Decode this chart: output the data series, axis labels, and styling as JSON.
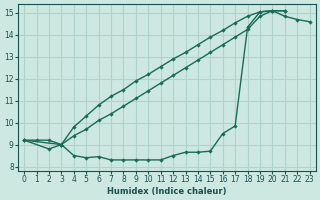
{
  "xlabel": "Humidex (Indice chaleur)",
  "xlim": [
    -0.5,
    23.5
  ],
  "ylim": [
    7.8,
    15.4
  ],
  "xticks": [
    0,
    1,
    2,
    3,
    4,
    5,
    6,
    7,
    8,
    9,
    10,
    11,
    12,
    13,
    14,
    15,
    16,
    17,
    18,
    19,
    20,
    21,
    22,
    23
  ],
  "yticks": [
    8,
    9,
    10,
    11,
    12,
    13,
    14,
    15
  ],
  "bg_color": "#cce8e0",
  "grid_color": "#aed4cc",
  "line_color": "#1a6b58",
  "line1_x": [
    0,
    1,
    2,
    3,
    4,
    5,
    6,
    7,
    8,
    9,
    10,
    11,
    12,
    13,
    14,
    15,
    16,
    17,
    18,
    19,
    20,
    21,
    22,
    23
  ],
  "line1_y": [
    9.2,
    9.2,
    9.2,
    9.0,
    8.5,
    8.4,
    8.45,
    8.3,
    8.3,
    8.3,
    8.3,
    8.3,
    8.5,
    8.65,
    8.65,
    8.7,
    9.5,
    9.85,
    14.35,
    15.05,
    15.1,
    14.85,
    14.7,
    14.6
  ],
  "line2_x": [
    0,
    3,
    4,
    5,
    6,
    7,
    8,
    9,
    10,
    11,
    12,
    13,
    14,
    15,
    16,
    17,
    18,
    19,
    20,
    21
  ],
  "line2_y": [
    9.2,
    9.0,
    9.8,
    10.3,
    10.8,
    11.2,
    11.5,
    11.9,
    12.2,
    12.55,
    12.9,
    13.2,
    13.55,
    13.9,
    14.2,
    14.55,
    14.85,
    15.05,
    15.1,
    15.1
  ],
  "line3_x": [
    0,
    2,
    3,
    4,
    5,
    6,
    7,
    8,
    9,
    10,
    11,
    12,
    13,
    14,
    15,
    16,
    17,
    18,
    19,
    20,
    21
  ],
  "line3_y": [
    9.2,
    8.8,
    9.0,
    9.4,
    9.7,
    10.1,
    10.4,
    10.75,
    11.1,
    11.45,
    11.8,
    12.15,
    12.5,
    12.85,
    13.2,
    13.55,
    13.9,
    14.25,
    14.85,
    15.1,
    15.1
  ]
}
